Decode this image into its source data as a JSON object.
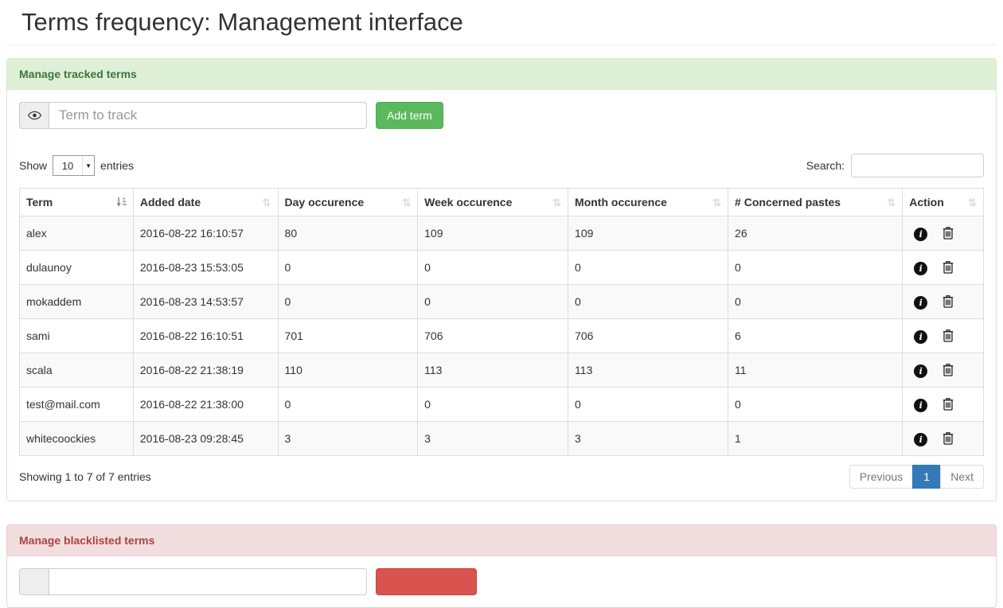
{
  "page": {
    "title": "Terms frequency: Management interface"
  },
  "colors": {
    "success_header_bg": "#dff0d8",
    "success_header_text": "#3c763d",
    "success_border": "#d6e9c6",
    "danger_header_bg": "#f2dede",
    "danger_header_text": "#a94442",
    "danger_border": "#ebccd1",
    "add_button": "#5cb85c",
    "blacklist_button": "#d9534f",
    "pagination_active": "#337ab7"
  },
  "icons": {
    "term_addon": "eye-icon",
    "sort_active": "sort-amount-asc-icon",
    "sort_inactive": "sort-both-icon",
    "row_info": "info-circle-icon",
    "row_delete": "trash-icon"
  },
  "tracked": {
    "panel_title": "Manage tracked terms",
    "term_input": {
      "placeholder": "Term to track",
      "value": ""
    },
    "add_button_label": "Add term",
    "controls": {
      "show_label": "Show",
      "entries_value": "10",
      "entries_label": "entries",
      "search_label": "Search:",
      "search_value": ""
    },
    "table": {
      "columns": [
        {
          "label": "Term",
          "sort": "asc"
        },
        {
          "label": "Added date",
          "sort": "both"
        },
        {
          "label": "Day occurence",
          "sort": "both"
        },
        {
          "label": "Week occurence",
          "sort": "both"
        },
        {
          "label": "Month occurence",
          "sort": "both"
        },
        {
          "label": "# Concerned pastes",
          "sort": "both"
        },
        {
          "label": "Action",
          "sort": "both"
        }
      ],
      "rows": [
        {
          "cells": [
            "alex",
            "2016-08-22 16:10:57",
            "80",
            "109",
            "109",
            "26"
          ]
        },
        {
          "cells": [
            "dulaunoy",
            "2016-08-23 15:53:05",
            "0",
            "0",
            "0",
            "0"
          ]
        },
        {
          "cells": [
            "mokaddem",
            "2016-08-23 14:53:57",
            "0",
            "0",
            "0",
            "0"
          ]
        },
        {
          "cells": [
            "sami",
            "2016-08-22 16:10:51",
            "701",
            "706",
            "706",
            "6"
          ]
        },
        {
          "cells": [
            "scala",
            "2016-08-22 21:38:19",
            "110",
            "113",
            "113",
            "11"
          ]
        },
        {
          "cells": [
            "test@mail.com",
            "2016-08-22 21:38:00",
            "0",
            "0",
            "0",
            "0"
          ]
        },
        {
          "cells": [
            "whitecoockies",
            "2016-08-23 09:28:45",
            "3",
            "3",
            "3",
            "1"
          ]
        }
      ]
    },
    "footer": {
      "showing_text": "Showing 1 to 7 of 7 entries",
      "pagination": {
        "previous": "Previous",
        "page": "1",
        "next": "Next"
      }
    }
  },
  "blacklist": {
    "panel_title": "Manage blacklisted terms",
    "term_input": {
      "value": ""
    }
  }
}
